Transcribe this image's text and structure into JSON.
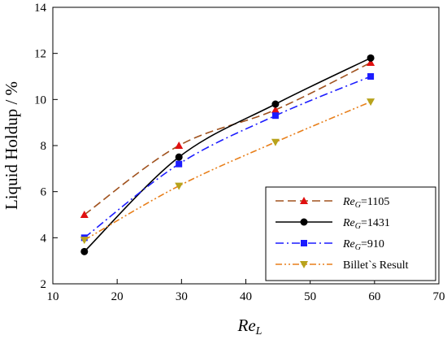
{
  "chart_data": {
    "type": "line",
    "xlabel": {
      "main": "Re",
      "sub": "L"
    },
    "ylabel": "Liquid Holdup / %",
    "xlim": [
      10,
      70
    ],
    "ylim": [
      2,
      14
    ],
    "xticks": [
      10,
      20,
      30,
      40,
      50,
      60,
      70
    ],
    "yticks": [
      2,
      4,
      6,
      8,
      10,
      12,
      14
    ],
    "grid": false,
    "legend": "bottom-right",
    "series": [
      {
        "name_main": "Re",
        "name_sub": "G",
        "name_rest": "=1105",
        "color": "#d91a1a",
        "line_color": "#a0521e",
        "dash": "10,5",
        "marker": "triangle-up",
        "marker_color": "#e01010",
        "x": [
          14.9,
          29.6,
          44.6,
          59.4
        ],
        "y": [
          5.0,
          8.0,
          9.55,
          11.6
        ]
      },
      {
        "name_main": "Re",
        "name_sub": "G",
        "name_rest": "=1431",
        "color": "#000000",
        "line_color": "#000000",
        "dash": "",
        "marker": "circle",
        "marker_color": "#000000",
        "x": [
          14.9,
          29.6,
          44.6,
          59.4
        ],
        "y": [
          3.4,
          7.5,
          9.8,
          11.8
        ]
      },
      {
        "name_main": "Re",
        "name_sub": "G",
        "name_rest": "=910",
        "color": "#1c1cff",
        "line_color": "#1c1cff",
        "dash": "10,4,2,4",
        "marker": "square",
        "marker_color": "#1c1cff",
        "x": [
          14.9,
          29.6,
          44.6,
          59.4
        ],
        "y": [
          4.0,
          7.2,
          9.3,
          11.0
        ]
      },
      {
        "name_main": "Billet`s Result",
        "name_sub": "",
        "name_rest": "",
        "color": "#e87f1a",
        "line_color": "#e87f1a",
        "dash": "8,3,2,3,2,3",
        "marker": "triangle-down",
        "marker_color": "#b8a31c",
        "x": [
          14.9,
          29.6,
          44.6,
          59.4
        ],
        "y": [
          3.9,
          6.25,
          8.15,
          9.9
        ]
      }
    ]
  }
}
